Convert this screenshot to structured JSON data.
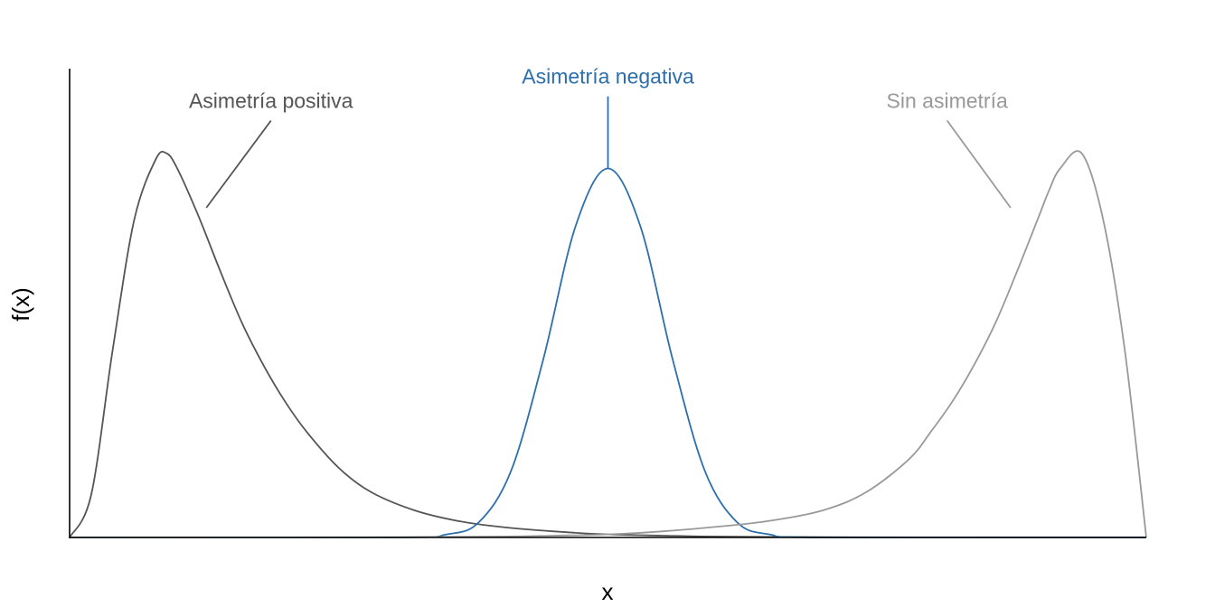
{
  "chart_data": {
    "type": "line",
    "title": "",
    "xlabel": "x",
    "ylabel": "f(x)",
    "xlim": [
      0,
      1
    ],
    "ylim": [
      0,
      1.55
    ],
    "grid": false,
    "legend": "none",
    "series": [
      {
        "name": "Asimetría positiva",
        "color": "#555555",
        "x": [
          0,
          0.02,
          0.04,
          0.06,
          0.08,
          0.09,
          0.1,
          0.12,
          0.14,
          0.16,
          0.18,
          0.2,
          0.22,
          0.25,
          0.28,
          0.32,
          0.36,
          0.4,
          0.45,
          0.5,
          0.55,
          0.6,
          0.7,
          0.8,
          1.0
        ],
        "values": [
          0,
          0.14,
          0.62,
          1.05,
          1.25,
          1.27,
          1.22,
          1.06,
          0.88,
          0.71,
          0.57,
          0.45,
          0.35,
          0.23,
          0.15,
          0.09,
          0.055,
          0.035,
          0.02,
          0.01,
          0.006,
          0.003,
          0.001,
          0.0004,
          0
        ]
      },
      {
        "name": "Asimetría negativa",
        "color": "#2c6fac",
        "x": [
          0,
          0.3,
          0.35,
          0.38,
          0.41,
          0.44,
          0.47,
          0.5,
          0.53,
          0.56,
          0.59,
          0.62,
          0.65,
          0.7,
          1.0
        ],
        "values": [
          0,
          0.0,
          0.01,
          0.05,
          0.22,
          0.59,
          1.03,
          1.22,
          1.03,
          0.59,
          0.22,
          0.05,
          0.01,
          0.0,
          0
        ]
      },
      {
        "name": "Sin asimetría",
        "color": "#999999",
        "x": [
          0,
          0.2,
          0.3,
          0.4,
          0.45,
          0.5,
          0.55,
          0.6,
          0.65,
          0.7,
          0.74,
          0.78,
          0.8,
          0.82,
          0.84,
          0.86,
          0.88,
          0.9,
          0.91,
          0.92,
          0.94,
          0.96,
          0.98,
          1.0
        ],
        "values": [
          0,
          0.0004,
          0.001,
          0.003,
          0.006,
          0.01,
          0.02,
          0.035,
          0.055,
          0.09,
          0.15,
          0.26,
          0.35,
          0.45,
          0.57,
          0.71,
          0.88,
          1.06,
          1.15,
          1.22,
          1.27,
          1.05,
          0.62,
          0.0
        ]
      }
    ],
    "annotations": [
      {
        "text": "Asimetría positiva",
        "color": "#555555",
        "label_x": 0.187,
        "label_y": 1.42,
        "point_x": 0.127,
        "point_y": 1.09,
        "anchor": "middle"
      },
      {
        "text": "Asimetría negativa",
        "color": "#2c6fac",
        "label_x": 0.5,
        "label_y": 1.5,
        "point_x": 0.5,
        "point_y": 1.22,
        "anchor": "middle"
      },
      {
        "text": "Sin asimetría",
        "color": "#999999",
        "label_x": 0.815,
        "label_y": 1.42,
        "point_x": 0.874,
        "point_y": 1.09,
        "anchor": "middle"
      }
    ]
  }
}
